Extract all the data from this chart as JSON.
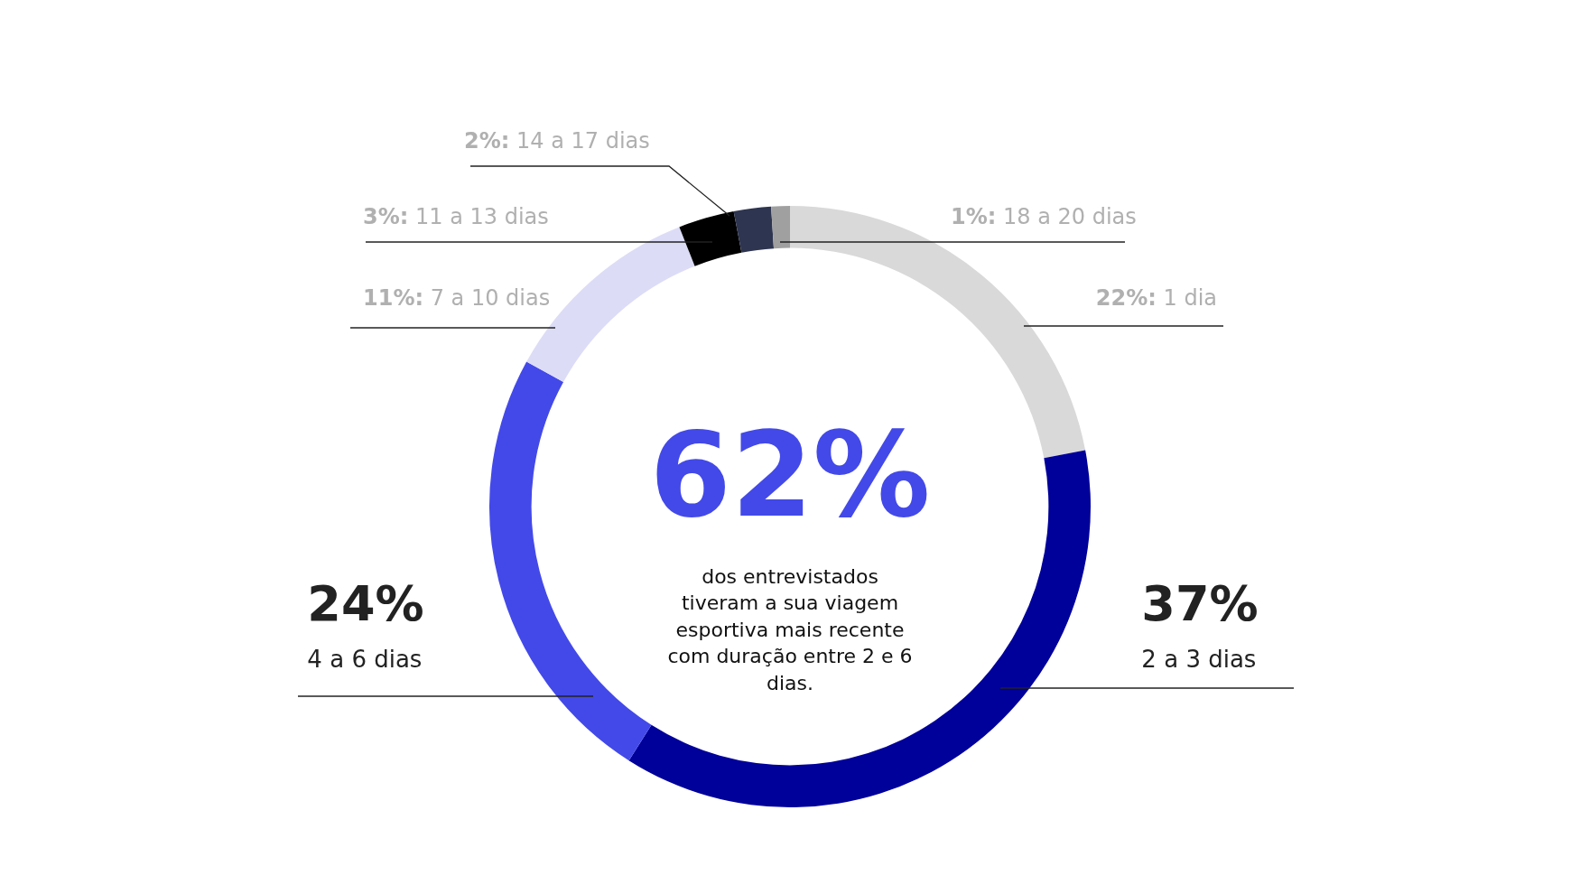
{
  "chart_data": {
    "type": "donut",
    "categories": [
      "1 dia",
      "2 a 3 dias",
      "4 a 6 dias",
      "7 a 10 dias",
      "11 a 13 dias",
      "14 a 17 dias",
      "18 a 20 dias"
    ],
    "values": [
      22,
      37,
      24,
      11,
      3,
      2,
      1
    ],
    "value_labels": [
      "22%:",
      "37%",
      "24%",
      "11%:",
      "3%:",
      "2%:",
      "1%:"
    ],
    "colors": [
      "#d9d9d9",
      "#00009a",
      "#4349e8",
      "#dcdcf7",
      "#000000",
      "#2e3550",
      "#a0a0a0"
    ],
    "annotations": [
      "62%",
      "dos entrevistados tiveram a sua viagem esportiva mais recente com duração entre 2 e 6 dias."
    ],
    "legend": false
  }
}
